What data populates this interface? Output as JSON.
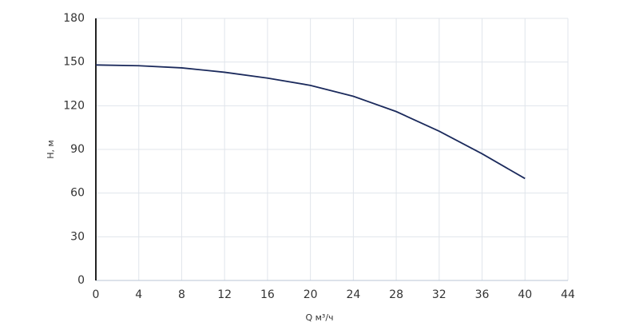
{
  "chart_data": {
    "type": "line",
    "x_label": "Q м³/ч",
    "y_label": "H, м",
    "x": [
      0,
      4,
      8,
      12,
      16,
      20,
      24,
      28,
      32,
      36,
      40
    ],
    "series": [
      {
        "name": "H",
        "color": "#1b2a5c",
        "values": [
          148,
          147.5,
          146,
          143,
          139,
          134,
          126.5,
          116,
          102.5,
          87,
          70
        ]
      }
    ],
    "xlim": [
      0,
      44
    ],
    "xticks": [
      0,
      4,
      8,
      12,
      16,
      20,
      24,
      28,
      32,
      36,
      40,
      44
    ],
    "ylim": [
      0,
      180
    ],
    "yticks": [
      0,
      30,
      60,
      90,
      120,
      150,
      180
    ],
    "grid": true
  }
}
